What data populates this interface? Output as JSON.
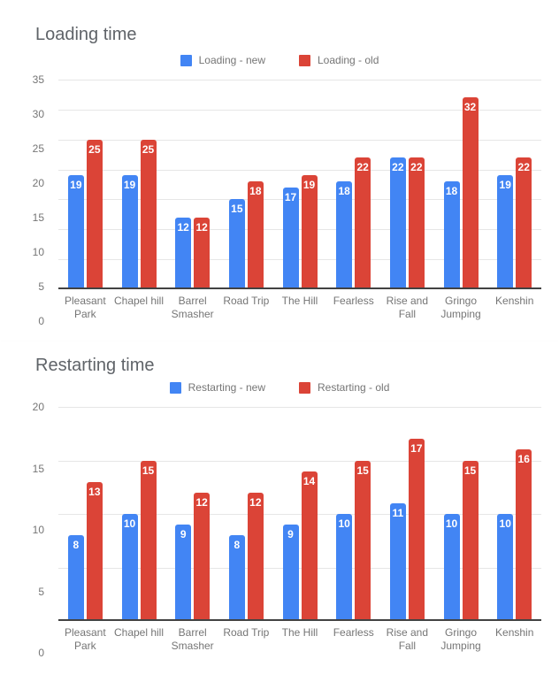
{
  "chart_data": [
    {
      "type": "bar",
      "title": "Loading time",
      "categories": [
        "Pleasant Park",
        "Chapel hill",
        "Barrel Smasher",
        "Road Trip",
        "The Hill",
        "Fearless",
        "Rise and Fall",
        "Gringo Jumping",
        "Kenshin"
      ],
      "series": [
        {
          "name": "Loading - new",
          "color": "#4285F4",
          "values": [
            19,
            19,
            12,
            15,
            17,
            18,
            22,
            18,
            19
          ]
        },
        {
          "name": "Loading - old",
          "color": "#DB4437",
          "values": [
            25,
            25,
            12,
            18,
            19,
            22,
            22,
            32,
            22
          ]
        }
      ],
      "xlabel": "",
      "ylabel": "",
      "ylim": [
        0,
        35
      ],
      "yticks": [
        0,
        5,
        10,
        15,
        20,
        25,
        30,
        35
      ],
      "grid": true,
      "legend_position": "top",
      "value_labels": true
    },
    {
      "type": "bar",
      "title": "Restarting time",
      "categories": [
        "Pleasant Park",
        "Chapel hill",
        "Barrel Smasher",
        "Road Trip",
        "The Hill",
        "Fearless",
        "Rise and Fall",
        "Gringo Jumping",
        "Kenshin"
      ],
      "series": [
        {
          "name": "Restarting - new",
          "color": "#4285F4",
          "values": [
            8,
            10,
            9,
            8,
            9,
            10,
            11,
            10,
            10
          ]
        },
        {
          "name": "Restarting - old",
          "color": "#DB4437",
          "values": [
            13,
            15,
            12,
            12,
            14,
            15,
            17,
            15,
            16
          ]
        }
      ],
      "xlabel": "",
      "ylabel": "",
      "ylim": [
        0,
        20
      ],
      "yticks": [
        0,
        5,
        10,
        15,
        20
      ],
      "grid": true,
      "legend_position": "top",
      "value_labels": true
    }
  ]
}
